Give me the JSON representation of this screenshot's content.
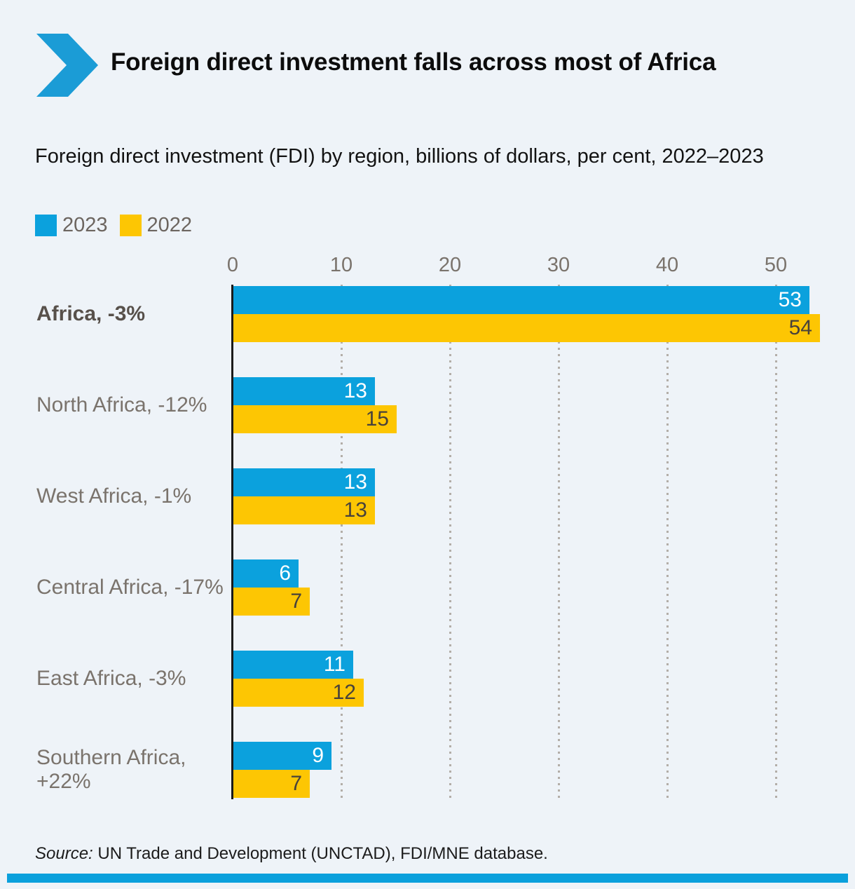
{
  "header": {
    "title": "Foreign direct investment falls across most of Africa",
    "subtitle": "Foreign direct investment (FDI) by region, billions of dollars, per cent, 2022–2023"
  },
  "legend": {
    "items": [
      {
        "label": "2023",
        "color": "#0ba1dd"
      },
      {
        "label": "2022",
        "color": "#fdc603"
      }
    ]
  },
  "chart_data": {
    "type": "bar",
    "orientation": "horizontal",
    "title": "Foreign direct investment (FDI) by region, billions of dollars, per cent, 2022–2023",
    "categories": [
      "Africa, -3%",
      "North Africa, -12%",
      "West Africa, -1%",
      "Central Africa, -17%",
      "East Africa, -3%",
      "Southern Africa, +22%"
    ],
    "series": [
      {
        "name": "2023",
        "color": "#0ba1dd",
        "label_color": "#ffffff",
        "values": [
          53,
          13,
          13,
          6,
          11,
          9
        ]
      },
      {
        "name": "2022",
        "color": "#fdc603",
        "label_color": "#48423b",
        "values": [
          54,
          15,
          13,
          7,
          12,
          7
        ]
      }
    ],
    "x_ticks": [
      0,
      10,
      20,
      30,
      40,
      50
    ],
    "xlim": [
      0,
      56.5
    ],
    "grid": "dotted-vertical",
    "value_labels": "inside-end",
    "legend_position": "top-left"
  },
  "icons": {
    "brand_chevron": "chevron-right-icon"
  },
  "colors": {
    "background": "#eef3f8",
    "logo_blue": "#1b9cd6",
    "bar_blue": "#0ba1dd",
    "bar_yellow": "#fdc603",
    "axis": "#1a1a1a",
    "gridline": "#b3aea8",
    "tick_text": "#7a736c",
    "category_text": "#7a736c",
    "category_text_bold": "#57504a",
    "footer_bar": "#0aa0dc"
  },
  "source": {
    "prefix": "Source:",
    "text": " UN Trade and Development (UNCTAD), FDI/MNE database."
  }
}
